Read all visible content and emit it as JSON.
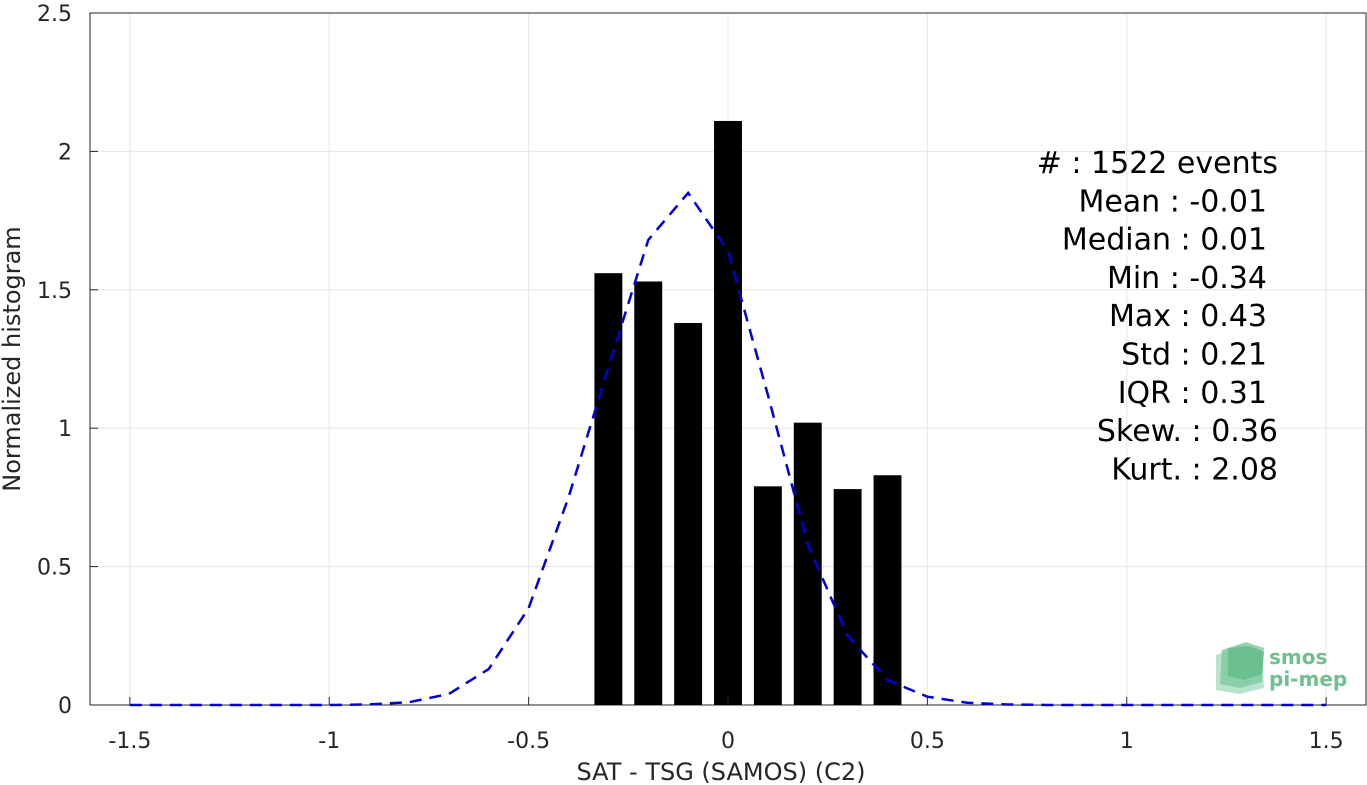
{
  "chart_data": {
    "type": "bar",
    "xlabel": "SAT - TSG (SAMOS) (C2)",
    "ylabel": "Normalized histogram",
    "xlim": [
      -1.6,
      1.6
    ],
    "ylim": [
      0,
      2.5
    ],
    "xticks": [
      -1.5,
      -1,
      -0.5,
      0,
      0.5,
      1,
      1.5
    ],
    "xtick_labels": [
      "-1.5",
      "-1",
      "-0.5",
      "0",
      "0.5",
      "1",
      "1.5"
    ],
    "yticks": [
      0,
      0.5,
      1,
      1.5,
      2,
      2.5
    ],
    "ytick_labels": [
      "0",
      "0.5",
      "1",
      "1.5",
      "2",
      "2.5"
    ],
    "grid": true,
    "bars": {
      "centers": [
        -0.3,
        -0.2,
        -0.1,
        0.0,
        0.1,
        0.2,
        0.3,
        0.4
      ],
      "values": [
        1.56,
        1.53,
        1.38,
        2.11,
        0.79,
        1.02,
        0.78,
        0.83
      ],
      "width": 0.07,
      "color": "#000000"
    },
    "fit_curve": {
      "style": "dashed",
      "color": "#0000dd",
      "x": [
        -1.5,
        -1.4,
        -1.3,
        -1.2,
        -1.1,
        -1.0,
        -0.9,
        -0.8,
        -0.7,
        -0.6,
        -0.5,
        -0.4,
        -0.3,
        -0.2,
        -0.1,
        0.0,
        0.1,
        0.2,
        0.3,
        0.4,
        0.5,
        0.6,
        0.7,
        0.8,
        0.9,
        1.0,
        1.1,
        1.2,
        1.3,
        1.4,
        1.5
      ],
      "y": [
        0,
        0,
        0,
        0,
        0,
        0,
        0.002,
        0.01,
        0.04,
        0.13,
        0.35,
        0.75,
        1.22,
        1.68,
        1.85,
        1.64,
        1.12,
        0.58,
        0.25,
        0.09,
        0.03,
        0.008,
        0.002,
        0,
        0,
        0,
        0,
        0,
        0,
        0,
        0
      ]
    },
    "stats_lines": [
      "#  : 1522 events",
      "Mean : -0.01",
      "Median : 0.01",
      "Min : -0.34",
      "Max : 0.43",
      "Std : 0.21",
      "IQR : 0.31",
      "Skew. : 0.36",
      "Kurt. : 2.08"
    ]
  },
  "logo": {
    "line1": "smos",
    "line2": "pi-mep",
    "color": "#6fbf8f"
  }
}
